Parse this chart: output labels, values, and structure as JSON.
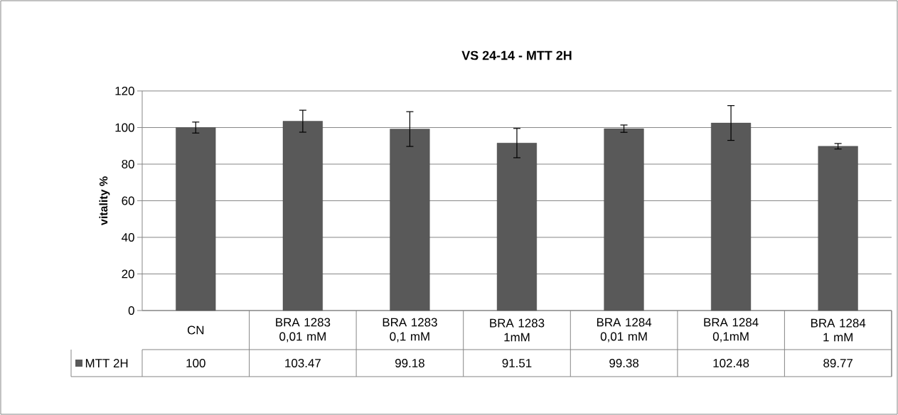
{
  "chart_data": {
    "type": "bar",
    "title": "VS 24-14 - MTT 2H",
    "ylabel": "vitality %",
    "categories": [
      "CN",
      "BRA 1283 0,01 mM",
      "BRA 1283 0,1 mM",
      "BRA 1283 1mM",
      "BRA 1284 0,01 mM",
      "BRA 1284 0,1mM",
      "BRA 1284 1 mM"
    ],
    "series": [
      {
        "name": "MTT 2H",
        "color": "#595959",
        "values": [
          100,
          103.47,
          99.18,
          91.51,
          99.38,
          102.48,
          89.77
        ],
        "errors": [
          3,
          6,
          9.5,
          8,
          2,
          9.5,
          1.5
        ]
      }
    ],
    "ylim": [
      0,
      120
    ],
    "yticks": [
      0,
      20,
      40,
      60,
      80,
      100,
      120
    ],
    "grid": "y",
    "legend": "bottom",
    "data_labels": true
  }
}
